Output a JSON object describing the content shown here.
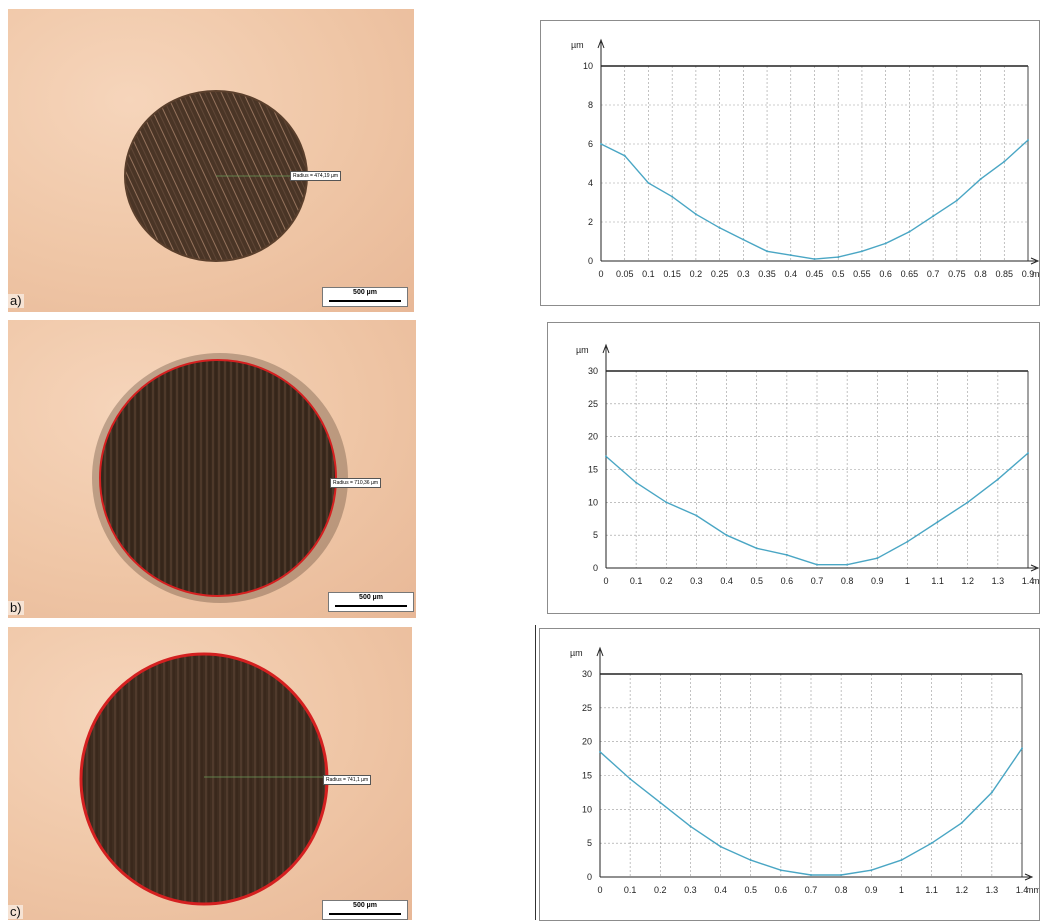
{
  "panels": [
    {
      "letter": "a)",
      "scale_bar": "500 µm",
      "radius_label": "Radius = 474,19 µm"
    },
    {
      "letter": "b)",
      "scale_bar": "500 µm",
      "radius_label": "Radius = 710,36 µm"
    },
    {
      "letter": "c)",
      "scale_bar": "500 µm",
      "radius_label": "Radius = 741,1 µm"
    }
  ],
  "colors": {
    "profile_line": "#4aa6c4",
    "grid": "#9a9a9a",
    "crater": "#3b2a1e",
    "crater_edge": "#d42020",
    "background_metal": "#efc6a6"
  },
  "chart_data": [
    {
      "type": "line",
      "ylabel": "µm",
      "xunit": "mm",
      "xlim": [
        0,
        0.9
      ],
      "ylim": [
        0,
        10
      ],
      "xticks": [
        "0",
        "0.05",
        "0.1",
        "0.15",
        "0.2",
        "0.25",
        "0.3",
        "0.35",
        "0.4",
        "0.45",
        "0.5",
        "0.55",
        "0.6",
        "0.65",
        "0.7",
        "0.75",
        "0.8",
        "0.85",
        "0.9"
      ],
      "yticks": [
        "0",
        "2",
        "4",
        "6",
        "8",
        "10"
      ],
      "series": [
        {
          "x": [
            0,
            0.05,
            0.1,
            0.15,
            0.2,
            0.25,
            0.3,
            0.35,
            0.4,
            0.45,
            0.5,
            0.55,
            0.6,
            0.65,
            0.7,
            0.75,
            0.8,
            0.85,
            0.9
          ],
          "values": [
            6.0,
            5.4,
            4.0,
            3.3,
            2.4,
            1.7,
            1.1,
            0.5,
            0.3,
            0.1,
            0.2,
            0.5,
            0.9,
            1.5,
            2.3,
            3.1,
            4.2,
            5.1,
            6.2
          ]
        }
      ]
    },
    {
      "type": "line",
      "ylabel": "µm",
      "xunit": "mm",
      "xlim": [
        0,
        1.4
      ],
      "ylim": [
        0,
        30
      ],
      "xticks": [
        "0",
        "0.1",
        "0.2",
        "0.3",
        "0.4",
        "0.5",
        "0.6",
        "0.7",
        "0.8",
        "0.9",
        "1",
        "1.1",
        "1.2",
        "1.3",
        "1.4"
      ],
      "yticks": [
        "0",
        "5",
        "10",
        "15",
        "20",
        "25",
        "30"
      ],
      "series": [
        {
          "x": [
            0,
            0.1,
            0.2,
            0.3,
            0.4,
            0.5,
            0.6,
            0.7,
            0.8,
            0.9,
            1.0,
            1.1,
            1.2,
            1.3,
            1.4
          ],
          "values": [
            17,
            13,
            10,
            8,
            5,
            3,
            2,
            0.5,
            0.5,
            1.5,
            4,
            7,
            10,
            13.5,
            17.5
          ]
        }
      ]
    },
    {
      "type": "line",
      "ylabel": "µm",
      "xunit": "mm",
      "xlim": [
        0,
        1.4
      ],
      "ylim": [
        0,
        30
      ],
      "xticks": [
        "0",
        "0.1",
        "0.2",
        "0.3",
        "0.4",
        "0.5",
        "0.6",
        "0.7",
        "0.8",
        "0.9",
        "1",
        "1.1",
        "1.2",
        "1.3",
        "1.4"
      ],
      "yticks": [
        "0",
        "5",
        "10",
        "15",
        "20",
        "25",
        "30"
      ],
      "series": [
        {
          "x": [
            0,
            0.1,
            0.2,
            0.3,
            0.4,
            0.5,
            0.6,
            0.7,
            0.8,
            0.9,
            1.0,
            1.1,
            1.2,
            1.3,
            1.4
          ],
          "values": [
            18.5,
            14.5,
            11,
            7.5,
            4.5,
            2.5,
            1,
            0.3,
            0.3,
            1,
            2.5,
            5,
            8,
            12.5,
            19
          ]
        }
      ]
    }
  ]
}
